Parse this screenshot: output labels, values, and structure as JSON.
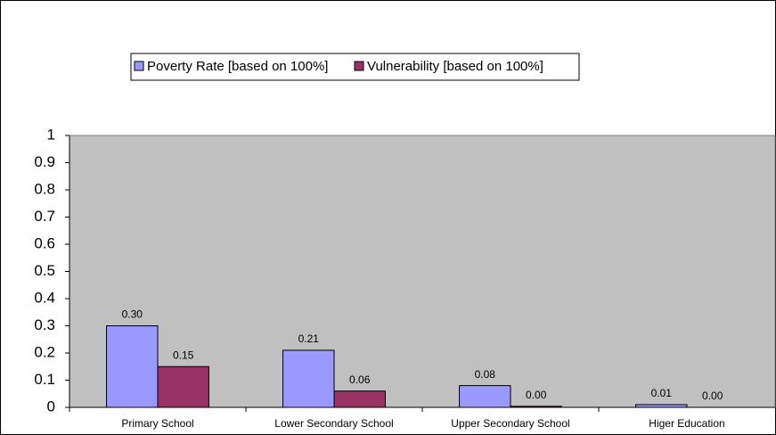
{
  "chart_data": {
    "type": "bar",
    "categories": [
      "Primary School",
      "Lower Secondary School",
      "Upper Secondary School",
      "Higer Education"
    ],
    "series": [
      {
        "name": "Poverty Rate [based on 100%]",
        "color": "#9999ff",
        "values": [
          0.3,
          0.21,
          0.08,
          0.01
        ],
        "value_labels": [
          "0.30",
          "0.21",
          "0.08",
          "0.01"
        ]
      },
      {
        "name": "Vulnerability [based on 100%]",
        "color": "#993366",
        "values": [
          0.15,
          0.06,
          0.004,
          0
        ],
        "value_labels": [
          "0.15",
          "0.06",
          "0.00",
          "0.00"
        ]
      }
    ],
    "ylim": [
      0,
      1
    ],
    "yticks": [
      0,
      0.1,
      0.2,
      0.3,
      0.4,
      0.5,
      0.6,
      0.7,
      0.8,
      0.9,
      1
    ],
    "legend": "top",
    "plot_background": "#c0c0c0"
  }
}
